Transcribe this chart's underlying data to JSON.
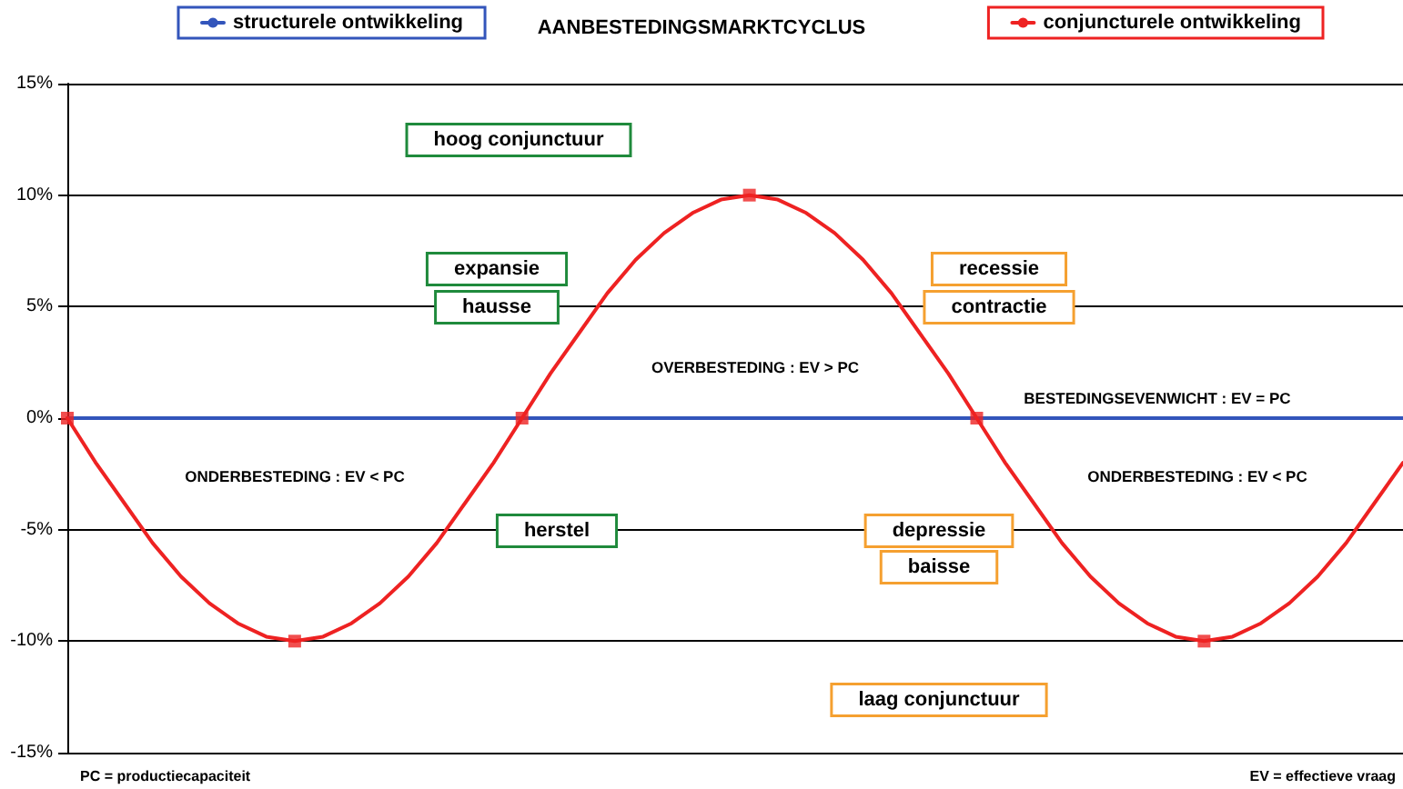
{
  "chart_data": {
    "type": "line",
    "title": "AANBESTEDINGSMARKTCYCLUS",
    "categories": [
      null,
      null,
      null,
      null,
      null,
      null,
      null,
      null,
      null,
      null,
      null,
      null,
      null,
      null,
      null,
      null,
      null,
      null,
      null,
      null,
      null,
      null,
      null,
      null,
      null,
      null,
      null,
      null,
      null,
      null,
      null,
      null,
      null,
      null,
      null,
      null,
      null,
      null,
      null,
      null,
      null,
      null,
      null,
      null,
      null,
      null,
      null,
      null
    ],
    "ylim": [
      -15,
      15
    ],
    "yticks": [
      {
        "value": -15,
        "label": "-15%"
      },
      {
        "value": -10,
        "label": "-10%"
      },
      {
        "value": -5,
        "label": "-5%"
      },
      {
        "value": 0,
        "label": "0%"
      },
      {
        "value": 5,
        "label": "5%"
      },
      {
        "value": 10,
        "label": "10%"
      },
      {
        "value": 15,
        "label": "15%"
      }
    ],
    "series": [
      {
        "name": "structurele ontwikkeling",
        "color": "#3355bb",
        "values": [
          0,
          0,
          0,
          0,
          0,
          0,
          0,
          0,
          0,
          0,
          0,
          0,
          0,
          0,
          0,
          0,
          0,
          0,
          0,
          0,
          0,
          0,
          0,
          0,
          0,
          0,
          0,
          0,
          0,
          0,
          0,
          0,
          0,
          0,
          0,
          0,
          0,
          0,
          0,
          0,
          0,
          0,
          0,
          0,
          0,
          0,
          0,
          0
        ]
      },
      {
        "name": "conjuncturele ontwikkeling",
        "color": "#ee2222",
        "values": [
          0,
          -2,
          -3.8,
          -5.6,
          -7.1,
          -8.3,
          -9.2,
          -9.8,
          -10,
          -9.8,
          -9.2,
          -8.3,
          -7.1,
          -5.6,
          -3.8,
          -2,
          0,
          2,
          3.8,
          5.6,
          7.1,
          8.3,
          9.2,
          9.8,
          10,
          9.8,
          9.2,
          8.3,
          7.1,
          5.6,
          3.8,
          2,
          0,
          -2,
          -3.8,
          -5.6,
          -7.1,
          -8.3,
          -9.2,
          -9.8,
          -10,
          -9.8,
          -9.2,
          -8.3,
          -7.1,
          -5.6,
          -3.8,
          -2
        ]
      },
      {
        "type": "scatter",
        "color": "#ee2222",
        "marker": "square",
        "values": [
          0,
          null,
          null,
          null,
          null,
          null,
          null,
          null,
          -10,
          null,
          null,
          null,
          null,
          null,
          null,
          null,
          0,
          null,
          null,
          null,
          null,
          null,
          null,
          null,
          10,
          null,
          null,
          null,
          null,
          null,
          null,
          null,
          0,
          null,
          null,
          null,
          null,
          null,
          null,
          null,
          -10,
          null,
          null,
          null,
          null,
          null,
          null,
          null
        ]
      }
    ],
    "grid": "y",
    "legend": "top",
    "tick_labels": "y",
    "annotations": [
      "hoog conjunctuur",
      "expansie",
      "hausse",
      "recessie",
      "contractie",
      "herstel",
      "depressie",
      "baisse",
      "laag conjunctuur",
      "OVERBESTEDING : EV > PC",
      "BESTEDINGSEVENWICHT : EV = PC",
      "ONDERBESTEDING : EV < PC",
      "ONDERBESTEDING : EV < PC",
      "PC = productiecapaciteit",
      "EV = effectieve vraag"
    ]
  }
}
